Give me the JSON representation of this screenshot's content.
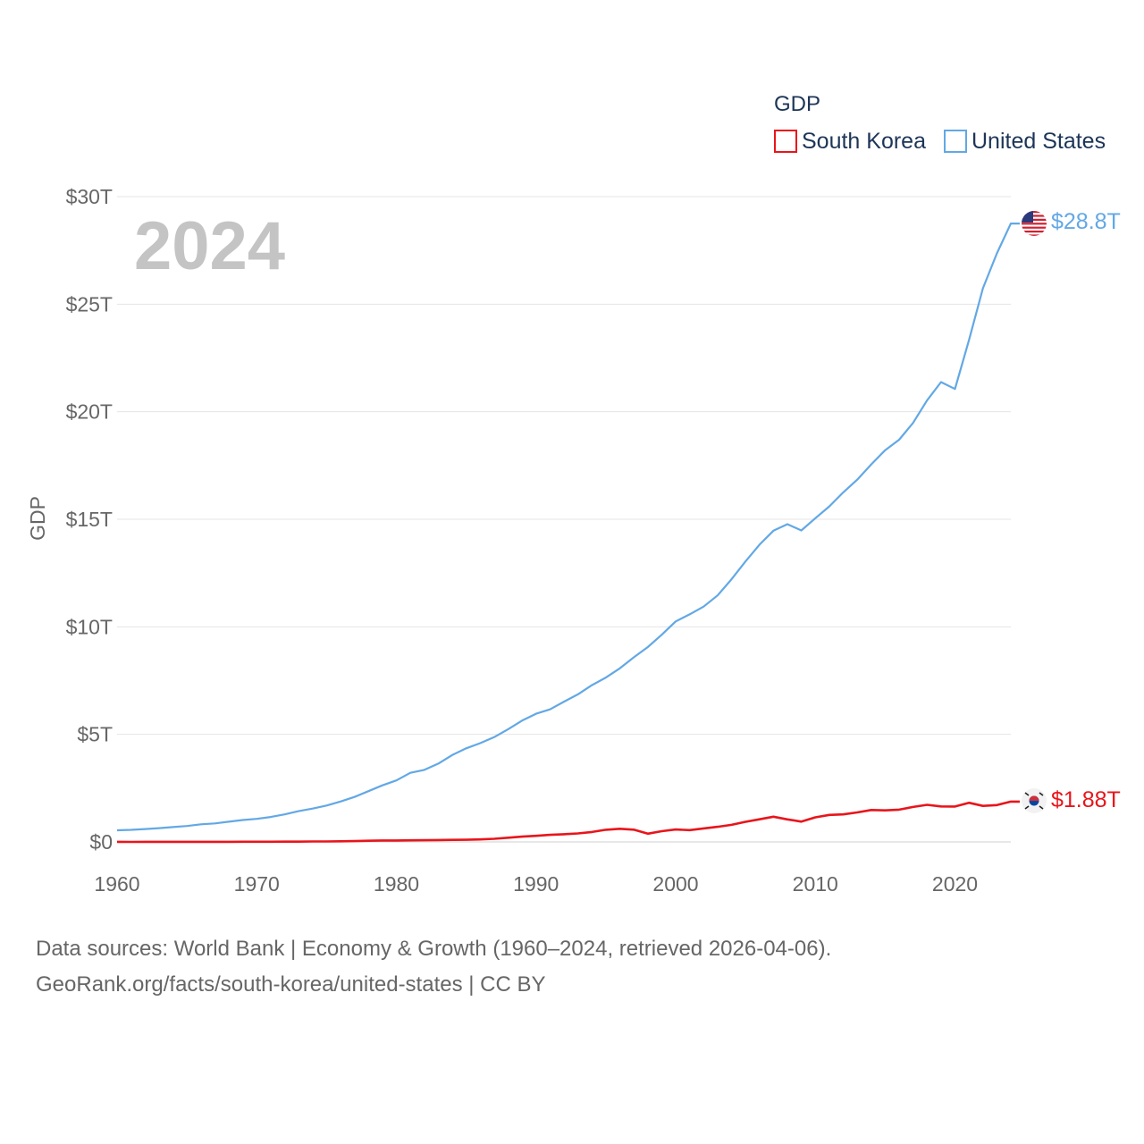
{
  "chart_data": {
    "type": "line",
    "year_label": "2024",
    "ylabel": "GDP",
    "legend": {
      "title": "GDP",
      "entries": [
        {
          "name": "South Korea",
          "color": "#e8151b"
        },
        {
          "name": "United States",
          "color": "#62a8e5"
        }
      ]
    },
    "x_ticks": [
      {
        "value": 1960,
        "label": "1960"
      },
      {
        "value": 1970,
        "label": "1970"
      },
      {
        "value": 1980,
        "label": "1980"
      },
      {
        "value": 1990,
        "label": "1990"
      },
      {
        "value": 2000,
        "label": "2000"
      },
      {
        "value": 2010,
        "label": "2010"
      },
      {
        "value": 2020,
        "label": "2020"
      }
    ],
    "y_ticks": [
      {
        "value": 0,
        "label": "$0"
      },
      {
        "value": 5,
        "label": "$5T"
      },
      {
        "value": 10,
        "label": "$10T"
      },
      {
        "value": 15,
        "label": "$15T"
      },
      {
        "value": 20,
        "label": "$20T"
      },
      {
        "value": 25,
        "label": "$25T"
      },
      {
        "value": 30,
        "label": "$30T"
      }
    ],
    "xlim": [
      1960,
      2024
    ],
    "ylim": [
      0,
      30
    ],
    "x": [
      1960,
      1961,
      1962,
      1963,
      1964,
      1965,
      1966,
      1967,
      1968,
      1969,
      1970,
      1971,
      1972,
      1973,
      1974,
      1975,
      1976,
      1977,
      1978,
      1979,
      1980,
      1981,
      1982,
      1983,
      1984,
      1985,
      1986,
      1987,
      1988,
      1989,
      1990,
      1991,
      1992,
      1993,
      1994,
      1995,
      1996,
      1997,
      1998,
      1999,
      2000,
      2001,
      2002,
      2003,
      2004,
      2005,
      2006,
      2007,
      2008,
      2009,
      2010,
      2011,
      2012,
      2013,
      2014,
      2015,
      2016,
      2017,
      2018,
      2019,
      2020,
      2021,
      2022,
      2023,
      2024
    ],
    "series": [
      {
        "name": "United States",
        "color": "#62a8e5",
        "end_label": "$28.8T",
        "values": [
          0.54,
          0.56,
          0.6,
          0.64,
          0.69,
          0.74,
          0.82,
          0.86,
          0.94,
          1.02,
          1.07,
          1.16,
          1.28,
          1.43,
          1.55,
          1.69,
          1.88,
          2.09,
          2.36,
          2.63,
          2.86,
          3.21,
          3.35,
          3.64,
          4.04,
          4.35,
          4.59,
          4.87,
          5.24,
          5.64,
          5.96,
          6.16,
          6.52,
          6.86,
          7.29,
          7.64,
          8.07,
          8.58,
          9.06,
          9.63,
          10.25,
          10.58,
          10.94,
          11.46,
          12.21,
          13.04,
          13.82,
          14.47,
          14.77,
          14.48,
          15.05,
          15.6,
          16.25,
          16.84,
          17.55,
          18.21,
          18.7,
          19.48,
          20.53,
          21.38,
          21.06,
          23.32,
          25.74,
          27.36,
          28.75
        ]
      },
      {
        "name": "South Korea",
        "color": "#e8151b",
        "end_label": "$1.88T",
        "values": [
          0.004,
          0.002,
          0.003,
          0.004,
          0.003,
          0.003,
          0.004,
          0.005,
          0.006,
          0.008,
          0.009,
          0.01,
          0.011,
          0.014,
          0.019,
          0.022,
          0.03,
          0.038,
          0.052,
          0.066,
          0.065,
          0.073,
          0.079,
          0.088,
          0.097,
          0.101,
          0.116,
          0.147,
          0.197,
          0.245,
          0.283,
          0.33,
          0.356,
          0.393,
          0.463,
          0.566,
          0.61,
          0.57,
          0.383,
          0.497,
          0.576,
          0.547,
          0.627,
          0.703,
          0.793,
          0.934,
          1.053,
          1.172,
          1.047,
          0.944,
          1.144,
          1.253,
          1.278,
          1.371,
          1.484,
          1.466,
          1.5,
          1.623,
          1.725,
          1.651,
          1.645,
          1.818,
          1.674,
          1.713,
          1.875
        ]
      }
    ]
  },
  "source": {
    "line1": "Data sources: World Bank | Economy & Growth (1960–2024, retrieved 2026-04-06).",
    "line2": "GeoRank.org/facts/south-korea/united-states | CC BY"
  }
}
